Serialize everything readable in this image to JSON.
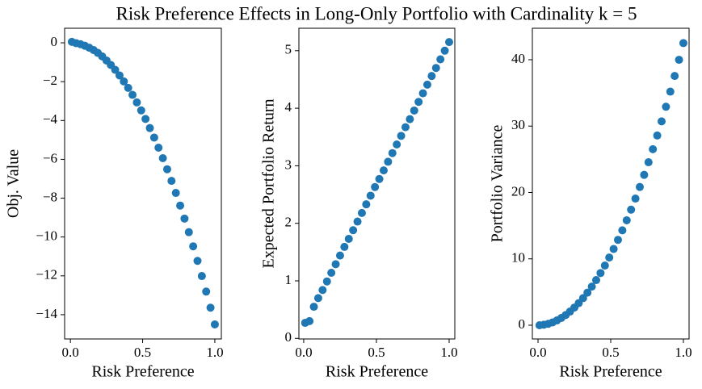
{
  "title": "Risk Preference Effects in Long-Only Portfolio with Cardinality k = 5",
  "chart_data": [
    {
      "type": "scatter",
      "xlabel": "Risk Preference",
      "ylabel": "Obj. Value",
      "color": "#1f77b4",
      "x": [
        0.01,
        0.04,
        0.07,
        0.1,
        0.13,
        0.16,
        0.19,
        0.22,
        0.25,
        0.28,
        0.31,
        0.34,
        0.37,
        0.4,
        0.43,
        0.46,
        0.49,
        0.52,
        0.55,
        0.58,
        0.61,
        0.64,
        0.67,
        0.7,
        0.73,
        0.76,
        0.79,
        0.82,
        0.85,
        0.88,
        0.91,
        0.94,
        0.97,
        1.0
      ],
      "values": [
        0.05,
        -0.02,
        -0.07,
        -0.15,
        -0.25,
        -0.37,
        -0.52,
        -0.7,
        -0.91,
        -1.14,
        -1.39,
        -1.68,
        -1.99,
        -2.32,
        -2.68,
        -3.07,
        -3.48,
        -3.92,
        -4.39,
        -4.88,
        -5.4,
        -5.94,
        -6.51,
        -7.11,
        -7.73,
        -8.38,
        -9.05,
        -9.75,
        -10.48,
        -11.23,
        -12.01,
        -12.81,
        -13.64,
        -14.5
      ],
      "xlim": [
        -0.04,
        1.045
      ],
      "ylim": [
        -15.25,
        0.75
      ],
      "xticks": [
        {
          "value": 0,
          "label": "0.0"
        },
        {
          "value": 0.5,
          "label": "0.5"
        },
        {
          "value": 1,
          "label": "1.0"
        }
      ],
      "yticks": [
        {
          "value": -14,
          "label": "−14"
        },
        {
          "value": -12,
          "label": "−12"
        },
        {
          "value": -10,
          "label": "−10"
        },
        {
          "value": -8,
          "label": "−8"
        },
        {
          "value": -6,
          "label": "−6"
        },
        {
          "value": -4,
          "label": "−4"
        },
        {
          "value": -2,
          "label": "−2"
        },
        0
      ]
    },
    {
      "type": "scatter",
      "xlabel": "Risk Preference",
      "ylabel": "Expected Portfolio Return",
      "color": "#1f77b4",
      "x": [
        0.01,
        0.04,
        0.07,
        0.1,
        0.13,
        0.16,
        0.19,
        0.22,
        0.25,
        0.28,
        0.31,
        0.34,
        0.37,
        0.4,
        0.43,
        0.46,
        0.49,
        0.52,
        0.55,
        0.58,
        0.61,
        0.64,
        0.67,
        0.7,
        0.73,
        0.76,
        0.79,
        0.82,
        0.85,
        0.88,
        0.91,
        0.94,
        0.97,
        1.0
      ],
      "values": [
        0.27,
        0.3,
        0.55,
        0.7,
        0.84,
        0.99,
        1.14,
        1.29,
        1.44,
        1.59,
        1.73,
        1.88,
        2.03,
        2.18,
        2.33,
        2.48,
        2.63,
        2.77,
        2.92,
        3.07,
        3.22,
        3.37,
        3.52,
        3.67,
        3.81,
        3.96,
        4.11,
        4.26,
        4.41,
        4.56,
        4.7,
        4.85,
        5.0,
        5.15
      ],
      "xlim": [
        -0.033,
        1.039
      ],
      "ylim": [
        -0.01,
        5.39
      ],
      "xticks": [
        {
          "value": 0,
          "label": "0.0"
        },
        {
          "value": 0.5,
          "label": "0.5"
        },
        {
          "value": 1,
          "label": "1.0"
        }
      ],
      "yticks": [
        0,
        1,
        2,
        3,
        4,
        5
      ]
    },
    {
      "type": "scatter",
      "xlabel": "Risk Preference",
      "ylabel": "Portfolio Variance",
      "color": "#1f77b4",
      "x": [
        0.01,
        0.04,
        0.07,
        0.1,
        0.13,
        0.16,
        0.19,
        0.22,
        0.25,
        0.28,
        0.31,
        0.34,
        0.37,
        0.4,
        0.43,
        0.46,
        0.49,
        0.52,
        0.55,
        0.58,
        0.61,
        0.64,
        0.67,
        0.7,
        0.73,
        0.76,
        0.79,
        0.82,
        0.85,
        0.88,
        0.91,
        0.94,
        0.97,
        1.0
      ],
      "values": [
        0.0,
        0.07,
        0.21,
        0.43,
        0.72,
        1.09,
        1.53,
        2.06,
        2.66,
        3.33,
        4.08,
        4.91,
        5.82,
        6.8,
        7.86,
        8.99,
        10.2,
        11.49,
        12.86,
        14.3,
        15.81,
        17.41,
        19.08,
        20.83,
        22.65,
        24.55,
        26.52,
        28.58,
        30.71,
        32.91,
        35.19,
        37.55,
        39.99,
        42.5
      ],
      "xlim": [
        -0.039,
        1.039
      ],
      "ylim": [
        -2.07,
        44.74
      ],
      "xticks": [
        {
          "value": 0,
          "label": "0.0"
        },
        {
          "value": 0.5,
          "label": "0.5"
        },
        {
          "value": 1,
          "label": "1.0"
        }
      ],
      "yticks": [
        0,
        10,
        20,
        30,
        40
      ]
    }
  ]
}
